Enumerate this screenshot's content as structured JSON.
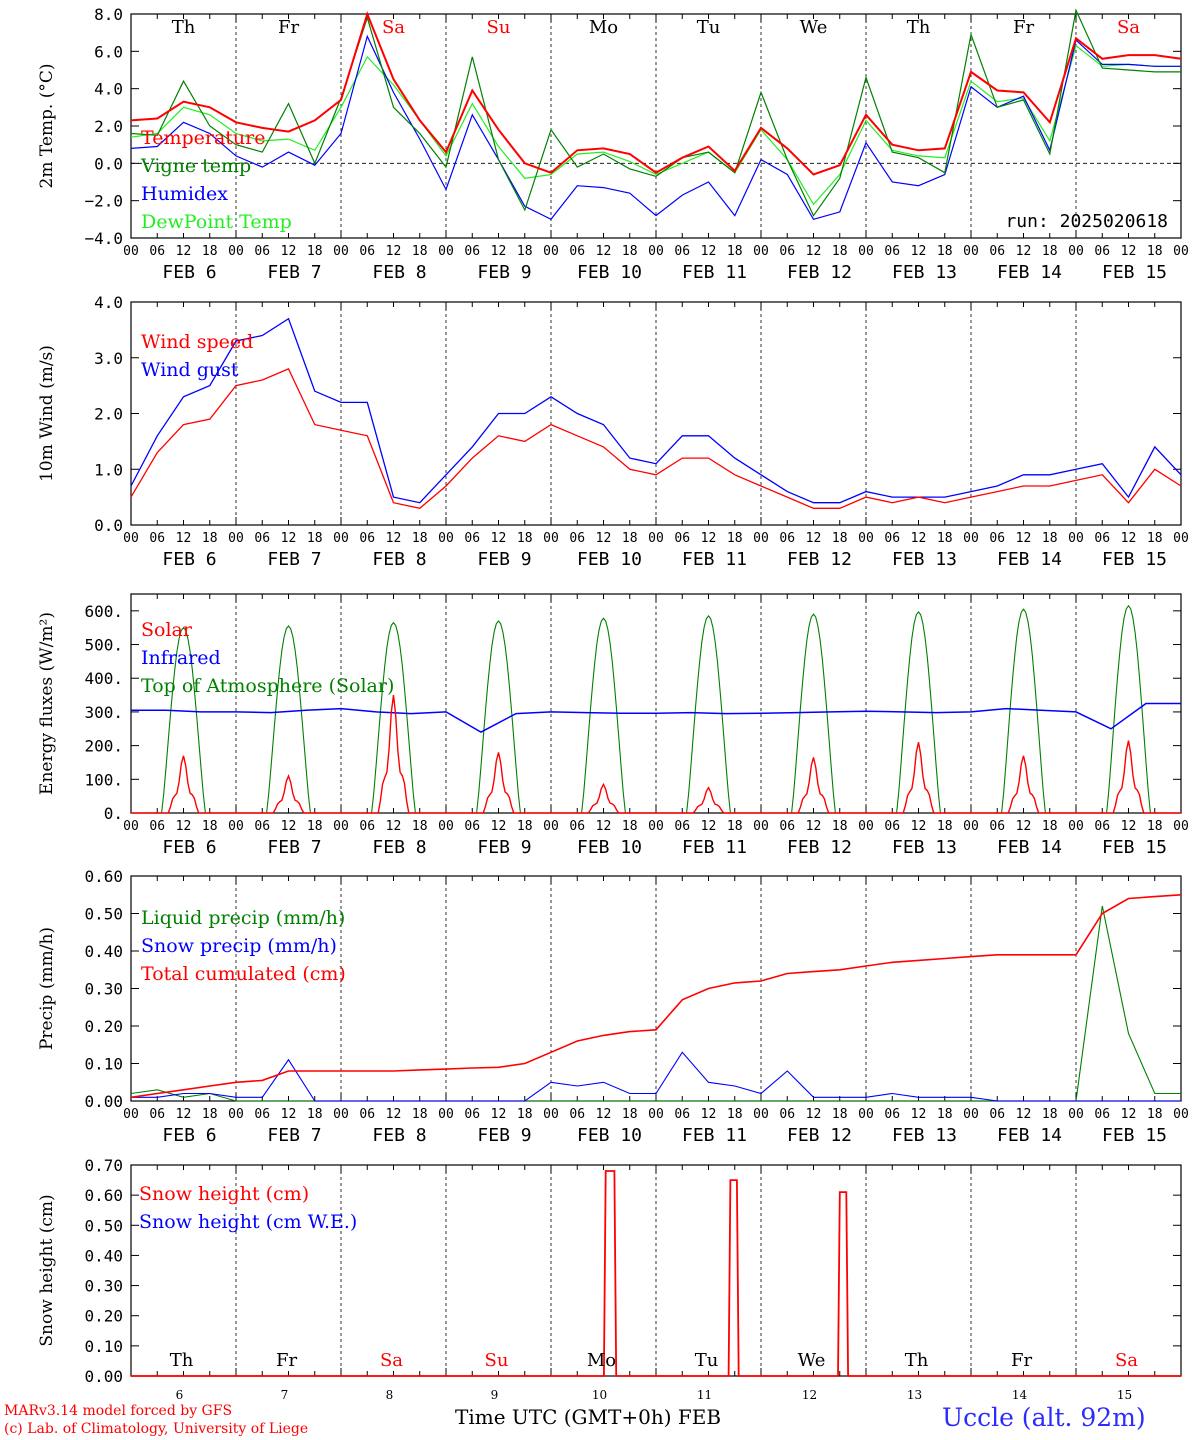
{
  "footer": {
    "model_line": "MARv3.14 model forced by GFS",
    "credit_line": "(c) Lab. of Climatology, University of Liege",
    "x_title": "Time UTC (GMT+0h)",
    "x_title_month": "FEB",
    "station": "Uccle (alt. 92m)"
  },
  "colors": {
    "red": "#ff0000",
    "green": "#008000",
    "blue": "#0000ff",
    "lightgreen": "#22ee22",
    "axis": "#000000"
  },
  "chart_data": [
    {
      "type": "line",
      "id": "temperature",
      "ylabel": "2m Temp. (°C)",
      "ylim": [
        -4,
        8
      ],
      "yticks": [
        "−4.0",
        "−2.0",
        "0.0",
        "2.0",
        "4.0",
        "6.0",
        "8.0"
      ],
      "yticks_values": [
        -4,
        -2,
        0,
        2,
        4,
        6,
        8
      ],
      "zero_line": true,
      "annotation": "run: 2025020618",
      "day_labels": [
        {
          "label": "Th",
          "color": "#000000"
        },
        {
          "label": "Fr",
          "color": "#000000"
        },
        {
          "label": "Sa",
          "color": "#ff0000"
        },
        {
          "label": "Su",
          "color": "#ff0000"
        },
        {
          "label": "Mo",
          "color": "#000000"
        },
        {
          "label": "Tu",
          "color": "#000000"
        },
        {
          "label": "We",
          "color": "#000000"
        },
        {
          "label": "Th",
          "color": "#000000"
        },
        {
          "label": "Fr",
          "color": "#000000"
        },
        {
          "label": "Sa",
          "color": "#ff0000"
        }
      ],
      "x_hours": [
        0,
        6,
        12,
        18,
        24,
        30,
        36,
        42,
        48,
        54,
        60,
        66,
        72,
        78,
        84,
        90,
        96,
        102,
        108,
        114,
        120,
        126,
        132,
        138,
        144,
        150,
        156,
        162,
        168,
        174,
        180,
        186,
        192,
        198,
        204,
        210,
        216,
        222,
        228,
        234,
        240
      ],
      "series": [
        {
          "name": "Temperature",
          "color": "#ff0000",
          "values": [
            2.3,
            2.4,
            3.3,
            3.0,
            2.2,
            1.9,
            1.7,
            2.3,
            3.4,
            8.0,
            4.5,
            2.3,
            0.6,
            3.9,
            1.8,
            0.0,
            -0.5,
            0.7,
            0.8,
            0.5,
            -0.5,
            0.3,
            0.9,
            -0.4,
            1.9,
            0.8,
            -0.6,
            -0.1,
            2.6,
            1.0,
            0.7,
            0.8,
            4.9,
            3.9,
            3.8,
            2.2,
            6.7,
            5.6,
            5.8,
            5.8,
            5.6
          ]
        },
        {
          "name": "Vigne temp",
          "color": "#008000",
          "values": [
            1.6,
            1.5,
            4.4,
            2.0,
            1.0,
            0.6,
            3.2,
            0.0,
            3.5,
            7.8,
            3.0,
            1.6,
            -0.2,
            5.7,
            0.2,
            -2.5,
            1.8,
            -0.2,
            0.5,
            -0.3,
            -0.7,
            0.3,
            0.6,
            -0.5,
            3.8,
            0.2,
            -2.8,
            -0.8,
            4.6,
            0.6,
            0.3,
            -0.5,
            6.9,
            3.0,
            3.4,
            0.5,
            8.2,
            5.1,
            5.0,
            4.9,
            4.9
          ]
        },
        {
          "name": "Humidex",
          "color": "#0000ff",
          "values": [
            0.8,
            0.9,
            2.2,
            1.6,
            0.4,
            -0.2,
            0.6,
            -0.1,
            1.6,
            6.8,
            3.8,
            1.3,
            -1.4,
            2.6,
            0.2,
            -2.3,
            -3.0,
            -1.2,
            -1.3,
            -1.6,
            -2.8,
            -1.7,
            -1.0,
            -2.8,
            0.2,
            -0.6,
            -3.0,
            -2.6,
            1.1,
            -1.0,
            -1.2,
            -0.6,
            4.1,
            3.0,
            3.6,
            0.7,
            6.6,
            5.3,
            5.3,
            5.2,
            5.2
          ]
        },
        {
          "name": "DewPoint Temp",
          "color": "#22ee22",
          "values": [
            1.4,
            1.6,
            3.0,
            2.6,
            1.6,
            1.2,
            1.3,
            0.7,
            3.0,
            5.7,
            4.2,
            2.3,
            0.4,
            3.2,
            0.9,
            -0.8,
            -0.6,
            0.5,
            0.6,
            0.1,
            -0.6,
            0.0,
            0.6,
            -0.5,
            1.8,
            0.2,
            -2.2,
            -0.6,
            2.3,
            0.7,
            0.4,
            0.3,
            4.4,
            3.3,
            3.5,
            1.2,
            6.3,
            5.2,
            5.3,
            5.2,
            5.2
          ]
        }
      ]
    },
    {
      "type": "line",
      "id": "wind",
      "ylabel": "10m Wind (m/s)",
      "ylim": [
        0,
        4
      ],
      "yticks": [
        "0.0",
        "1.0",
        "2.0",
        "3.0",
        "4.0"
      ],
      "yticks_values": [
        0,
        1,
        2,
        3,
        4
      ],
      "x_hours": [
        0,
        6,
        12,
        18,
        24,
        30,
        36,
        42,
        48,
        54,
        60,
        66,
        72,
        78,
        84,
        90,
        96,
        102,
        108,
        114,
        120,
        126,
        132,
        138,
        144,
        150,
        156,
        162,
        168,
        174,
        180,
        186,
        192,
        198,
        204,
        210,
        216,
        222,
        228,
        234,
        240
      ],
      "series": [
        {
          "name": "Wind speed",
          "color": "#ff0000",
          "values": [
            0.5,
            1.3,
            1.8,
            1.9,
            2.5,
            2.6,
            2.8,
            1.8,
            1.7,
            1.6,
            0.4,
            0.3,
            0.7,
            1.2,
            1.6,
            1.5,
            1.8,
            1.6,
            1.4,
            1.0,
            0.9,
            1.2,
            1.2,
            0.9,
            0.7,
            0.5,
            0.3,
            0.3,
            0.5,
            0.4,
            0.5,
            0.4,
            0.5,
            0.6,
            0.7,
            0.7,
            0.8,
            0.9,
            0.4,
            1.0,
            0.7
          ]
        },
        {
          "name": "Wind gust",
          "color": "#0000ff",
          "values": [
            0.7,
            1.6,
            2.3,
            2.5,
            3.3,
            3.4,
            3.7,
            2.4,
            2.2,
            2.2,
            0.5,
            0.4,
            0.9,
            1.4,
            2.0,
            2.0,
            2.3,
            2.0,
            1.8,
            1.2,
            1.1,
            1.6,
            1.6,
            1.2,
            0.9,
            0.6,
            0.4,
            0.4,
            0.6,
            0.5,
            0.5,
            0.5,
            0.6,
            0.7,
            0.9,
            0.9,
            1.0,
            1.1,
            0.5,
            1.4,
            0.9
          ]
        }
      ]
    },
    {
      "type": "line",
      "id": "energy",
      "ylabel": "Energy fluxes (W/m²)",
      "ylim": [
        0,
        650
      ],
      "yticks": [
        "0.",
        "100.",
        "200.",
        "300.",
        "400.",
        "500.",
        "600."
      ],
      "yticks_values": [
        0,
        100,
        200,
        300,
        400,
        500,
        600
      ],
      "daily_peaks_toa": [
        550,
        555,
        565,
        570,
        578,
        585,
        590,
        597,
        605,
        615
      ],
      "daily_peaks_solar": [
        170,
        110,
        350,
        180,
        85,
        75,
        165,
        210,
        170,
        215
      ],
      "series": [
        {
          "name": "Solar",
          "color": "#ff0000",
          "values": []
        },
        {
          "name": "Infrared",
          "color": "#0000ff",
          "values": [
            305,
            305,
            300,
            300,
            298,
            305,
            310,
            300,
            295,
            300,
            240,
            295,
            300,
            298,
            296,
            296,
            298,
            295,
            296,
            298,
            300,
            302,
            300,
            298,
            300,
            310,
            305,
            300,
            250,
            325,
            325
          ]
        },
        {
          "name": "Top of Atmosphere (Solar)",
          "color": "#008000",
          "values": []
        }
      ]
    },
    {
      "type": "line",
      "id": "precip",
      "ylabel": "Precip (mm/h)",
      "ylim": [
        0,
        0.6
      ],
      "yticks": [
        "0.00",
        "0.10",
        "0.20",
        "0.30",
        "0.40",
        "0.50",
        "0.60"
      ],
      "yticks_values": [
        0,
        0.1,
        0.2,
        0.3,
        0.4,
        0.5,
        0.6
      ],
      "x_hours": [
        0,
        6,
        12,
        18,
        24,
        30,
        36,
        42,
        48,
        54,
        60,
        66,
        72,
        78,
        84,
        90,
        96,
        102,
        108,
        114,
        120,
        126,
        132,
        138,
        144,
        150,
        156,
        162,
        168,
        174,
        180,
        186,
        192,
        198,
        204,
        210,
        216,
        222,
        228,
        234,
        240
      ],
      "series": [
        {
          "name": "Liquid precip (mm/h)",
          "color": "#008000",
          "values": [
            0.02,
            0.03,
            0.01,
            0.02,
            0.0,
            0.0,
            0.0,
            0.0,
            0.0,
            0.0,
            0.0,
            0.0,
            0.0,
            0.0,
            0.0,
            0.0,
            0.0,
            0.0,
            0.0,
            0.0,
            0.0,
            0.0,
            0.0,
            0.0,
            0.0,
            0.0,
            0.0,
            0.0,
            0.0,
            0.0,
            0.0,
            0.0,
            0.0,
            0.0,
            0.0,
            0.0,
            0.0,
            0.52,
            0.18,
            0.02,
            0.02
          ]
        },
        {
          "name": "Snow precip (mm/h)",
          "color": "#0000ff",
          "values": [
            0.01,
            0.01,
            0.02,
            0.02,
            0.01,
            0.01,
            0.11,
            0.0,
            0.0,
            0.0,
            0.0,
            0.0,
            0.0,
            0.0,
            0.0,
            0.0,
            0.05,
            0.04,
            0.05,
            0.02,
            0.02,
            0.13,
            0.05,
            0.04,
            0.02,
            0.08,
            0.01,
            0.01,
            0.01,
            0.02,
            0.01,
            0.01,
            0.01,
            0.0,
            0.0,
            0.0,
            0.0,
            0.0,
            0.0,
            0.0,
            0.0
          ]
        },
        {
          "name": "Total cumulated (cm)",
          "color": "#ff0000",
          "values": [
            0.01,
            0.02,
            0.03,
            0.04,
            0.05,
            0.055,
            0.08,
            0.08,
            0.08,
            0.08,
            0.08,
            0.083,
            0.085,
            0.088,
            0.09,
            0.1,
            0.13,
            0.16,
            0.175,
            0.185,
            0.19,
            0.27,
            0.3,
            0.315,
            0.32,
            0.34,
            0.345,
            0.35,
            0.36,
            0.37,
            0.375,
            0.38,
            0.385,
            0.39,
            0.39,
            0.39,
            0.39,
            0.5,
            0.54,
            0.545,
            0.55
          ]
        }
      ]
    },
    {
      "type": "line",
      "id": "snow",
      "ylabel": "Snow height (cm)",
      "ylim": [
        0,
        0.7
      ],
      "yticks": [
        "0.00",
        "0.10",
        "0.20",
        "0.30",
        "0.40",
        "0.50",
        "0.60",
        "0.70"
      ],
      "yticks_values": [
        0,
        0.1,
        0.2,
        0.3,
        0.4,
        0.5,
        0.6,
        0.7
      ],
      "day_labels": [
        {
          "label": "Th",
          "color": "#000000"
        },
        {
          "label": "Fr",
          "color": "#000000"
        },
        {
          "label": "Sa",
          "color": "#ff0000"
        },
        {
          "label": "Su",
          "color": "#ff0000"
        },
        {
          "label": "Mo",
          "color": "#000000"
        },
        {
          "label": "Tu",
          "color": "#000000"
        },
        {
          "label": "We",
          "color": "#000000"
        },
        {
          "label": "Th",
          "color": "#000000"
        },
        {
          "label": "Fr",
          "color": "#000000"
        },
        {
          "label": "Sa",
          "color": "#ff0000"
        }
      ],
      "day_numbers": [
        "6",
        "7",
        "8",
        "9",
        "10",
        "11",
        "12",
        "13",
        "14",
        "15"
      ],
      "spikes": [
        {
          "start_h": 108.5,
          "end_h": 110.5,
          "value": 0.68
        },
        {
          "start_h": 137,
          "end_h": 138.5,
          "value": 0.65
        },
        {
          "start_h": 162,
          "end_h": 163.5,
          "value": 0.61
        }
      ],
      "series": [
        {
          "name": "Snow height (cm)",
          "color": "#ff0000",
          "values": []
        },
        {
          "name": "Snow height (cm W.E.)",
          "color": "#0000ff",
          "values": []
        }
      ]
    }
  ],
  "x_axis": {
    "hour_labels": [
      "00",
      "06",
      "12",
      "18"
    ],
    "end_label": "00",
    "date_labels": [
      "FEB  6",
      "FEB  7",
      "FEB  8",
      "FEB  9",
      "FEB 10",
      "FEB 11",
      "FEB 12",
      "FEB 13",
      "FEB 14",
      "FEB 15"
    ]
  }
}
